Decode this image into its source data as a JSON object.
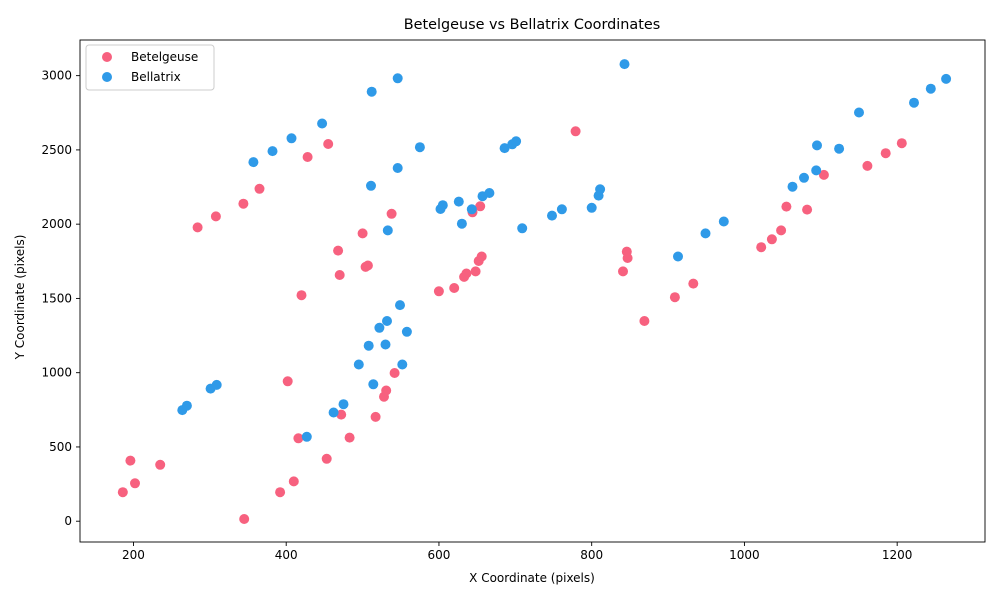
{
  "chart_data": {
    "type": "scatter",
    "title": "Betelgeuse vs Bellatrix Coordinates",
    "xlabel": "X Coordinate (pixels)",
    "ylabel": "Y Coordinate (pixels)",
    "xlim": [
      130,
      1315
    ],
    "ylim": [
      -140,
      3240
    ],
    "xticks": [
      200,
      400,
      600,
      800,
      1000,
      1200
    ],
    "yticks": [
      0,
      500,
      1000,
      1500,
      2000,
      2500,
      3000
    ],
    "grid": false,
    "legend_position": "upper-left",
    "series": [
      {
        "name": "Betelgeuse",
        "color": "#f7617f",
        "points": [
          [
            186,
            195
          ],
          [
            202,
            255
          ],
          [
            196,
            408
          ],
          [
            235,
            380
          ],
          [
            284,
            1978
          ],
          [
            308,
            2052
          ],
          [
            344,
            2138
          ],
          [
            365,
            2238
          ],
          [
            345,
            15
          ],
          [
            392,
            195
          ],
          [
            410,
            268
          ],
          [
            402,
            942
          ],
          [
            416,
            558
          ],
          [
            420,
            1522
          ],
          [
            428,
            2452
          ],
          [
            455,
            2540
          ],
          [
            453,
            420
          ],
          [
            483,
            563
          ],
          [
            472,
            718
          ],
          [
            468,
            1822
          ],
          [
            470,
            1658
          ],
          [
            500,
            1938
          ],
          [
            504,
            1712
          ],
          [
            507,
            1722
          ],
          [
            517,
            702
          ],
          [
            528,
            838
          ],
          [
            531,
            880
          ],
          [
            538,
            2070
          ],
          [
            542,
            998
          ],
          [
            600,
            1548
          ],
          [
            620,
            1570
          ],
          [
            633,
            1645
          ],
          [
            636,
            1668
          ],
          [
            644,
            2080
          ],
          [
            648,
            1682
          ],
          [
            652,
            1752
          ],
          [
            654,
            2120
          ],
          [
            656,
            1782
          ],
          [
            779,
            2625
          ],
          [
            841,
            1682
          ],
          [
            846,
            1815
          ],
          [
            847,
            1772
          ],
          [
            869,
            1348
          ],
          [
            909,
            1508
          ],
          [
            933,
            1600
          ],
          [
            1022,
            1845
          ],
          [
            1036,
            1898
          ],
          [
            1048,
            1958
          ],
          [
            1055,
            2118
          ],
          [
            1082,
            2098
          ],
          [
            1104,
            2332
          ],
          [
            1161,
            2392
          ],
          [
            1185,
            2478
          ],
          [
            1206,
            2545
          ]
        ]
      },
      {
        "name": "Bellatrix",
        "color": "#2f9ae8",
        "points": [
          [
            264,
            748
          ],
          [
            270,
            778
          ],
          [
            301,
            893
          ],
          [
            309,
            918
          ],
          [
            357,
            2418
          ],
          [
            382,
            2492
          ],
          [
            407,
            2578
          ],
          [
            427,
            568
          ],
          [
            447,
            2678
          ],
          [
            462,
            732
          ],
          [
            475,
            788
          ],
          [
            495,
            1055
          ],
          [
            508,
            1182
          ],
          [
            512,
            2892
          ],
          [
            511,
            2258
          ],
          [
            514,
            922
          ],
          [
            522,
            1302
          ],
          [
            530,
            1190
          ],
          [
            533,
            1958
          ],
          [
            532,
            1348
          ],
          [
            546,
            2982
          ],
          [
            546,
            2378
          ],
          [
            549,
            1455
          ],
          [
            552,
            1055
          ],
          [
            558,
            1275
          ],
          [
            575,
            2518
          ],
          [
            602,
            2102
          ],
          [
            605,
            2128
          ],
          [
            626,
            2152
          ],
          [
            630,
            2003
          ],
          [
            643,
            2100
          ],
          [
            657,
            2188
          ],
          [
            666,
            2210
          ],
          [
            686,
            2512
          ],
          [
            696,
            2538
          ],
          [
            701,
            2558
          ],
          [
            709,
            1972
          ],
          [
            748,
            2058
          ],
          [
            761,
            2100
          ],
          [
            800,
            2110
          ],
          [
            809,
            2192
          ],
          [
            811,
            2235
          ],
          [
            843,
            3078
          ],
          [
            913,
            1782
          ],
          [
            949,
            1938
          ],
          [
            973,
            2018
          ],
          [
            1063,
            2252
          ],
          [
            1078,
            2312
          ],
          [
            1094,
            2362
          ],
          [
            1095,
            2530
          ],
          [
            1124,
            2508
          ],
          [
            1150,
            2752
          ],
          [
            1222,
            2818
          ],
          [
            1244,
            2912
          ],
          [
            1264,
            2978
          ]
        ]
      }
    ]
  }
}
